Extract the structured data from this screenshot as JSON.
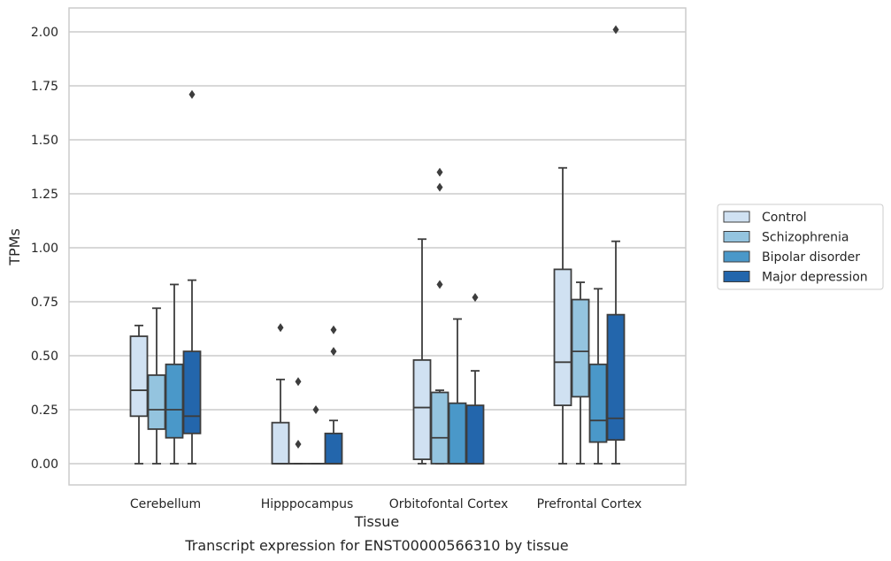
{
  "chart_data": {
    "type": "box",
    "caption": "Transcript expression for ENST00000566310 by tissue",
    "xlabel": "Tissue",
    "ylabel": "TPMs",
    "ylim": [
      -0.1,
      2.11
    ],
    "yticks": [
      "0.00",
      "0.25",
      "0.50",
      "0.75",
      "1.00",
      "1.25",
      "1.50",
      "1.75",
      "2.00"
    ],
    "grid": "horizontal",
    "legend_position": "right",
    "categories": [
      "Cerebellum",
      "Hipppocampus",
      "Orbitofontal Cortex",
      "Prefrontal Cortex"
    ],
    "series": [
      {
        "name": "Control",
        "color": "#d0e1f2",
        "boxes": [
          {
            "whislo": 0.0,
            "q1": 0.22,
            "med": 0.34,
            "q3": 0.59,
            "whishi": 0.64,
            "fliers": []
          },
          {
            "whislo": 0.0,
            "q1": 0.0,
            "med": 0.0,
            "q3": 0.19,
            "whishi": 0.39,
            "fliers": [
              0.63
            ]
          },
          {
            "whislo": 0.0,
            "q1": 0.02,
            "med": 0.26,
            "q3": 0.48,
            "whishi": 1.04,
            "fliers": []
          },
          {
            "whislo": 0.0,
            "q1": 0.27,
            "med": 0.47,
            "q3": 0.9,
            "whishi": 1.37,
            "fliers": []
          }
        ]
      },
      {
        "name": "Schizophrenia",
        "color": "#94c4df",
        "boxes": [
          {
            "whislo": 0.0,
            "q1": 0.16,
            "med": 0.25,
            "q3": 0.41,
            "whishi": 0.72,
            "fliers": []
          },
          {
            "whislo": 0.0,
            "q1": 0.0,
            "med": 0.0,
            "q3": 0.0,
            "whishi": 0.0,
            "fliers": [
              0.38,
              0.09
            ]
          },
          {
            "whislo": 0.0,
            "q1": 0.0,
            "med": 0.12,
            "q3": 0.33,
            "whishi": 0.34,
            "fliers": [
              1.35,
              1.28,
              0.83
            ]
          },
          {
            "whislo": 0.0,
            "q1": 0.31,
            "med": 0.52,
            "q3": 0.76,
            "whishi": 0.84,
            "fliers": []
          }
        ]
      },
      {
        "name": "Bipolar disorder",
        "color": "#4a98c9",
        "boxes": [
          {
            "whislo": 0.0,
            "q1": 0.12,
            "med": 0.25,
            "q3": 0.46,
            "whishi": 0.83,
            "fliers": []
          },
          {
            "whislo": 0.0,
            "q1": 0.0,
            "med": 0.0,
            "q3": 0.0,
            "whishi": 0.0,
            "fliers": [
              0.25
            ]
          },
          {
            "whislo": 0.0,
            "q1": 0.0,
            "med": 0.0,
            "q3": 0.28,
            "whishi": 0.67,
            "fliers": []
          },
          {
            "whislo": 0.0,
            "q1": 0.1,
            "med": 0.2,
            "q3": 0.46,
            "whishi": 0.81,
            "fliers": []
          }
        ]
      },
      {
        "name": "Major depression",
        "color": "#2366ac",
        "boxes": [
          {
            "whislo": 0.0,
            "q1": 0.14,
            "med": 0.22,
            "q3": 0.52,
            "whishi": 0.85,
            "fliers": [
              1.71
            ]
          },
          {
            "whislo": 0.0,
            "q1": 0.0,
            "med": 0.0,
            "q3": 0.14,
            "whishi": 0.2,
            "fliers": [
              0.62,
              0.52
            ]
          },
          {
            "whislo": 0.0,
            "q1": 0.0,
            "med": 0.0,
            "q3": 0.27,
            "whishi": 0.43,
            "fliers": [
              0.77
            ]
          },
          {
            "whislo": 0.0,
            "q1": 0.11,
            "med": 0.21,
            "q3": 0.69,
            "whishi": 1.03,
            "fliers": [
              2.01
            ]
          }
        ]
      }
    ]
  }
}
